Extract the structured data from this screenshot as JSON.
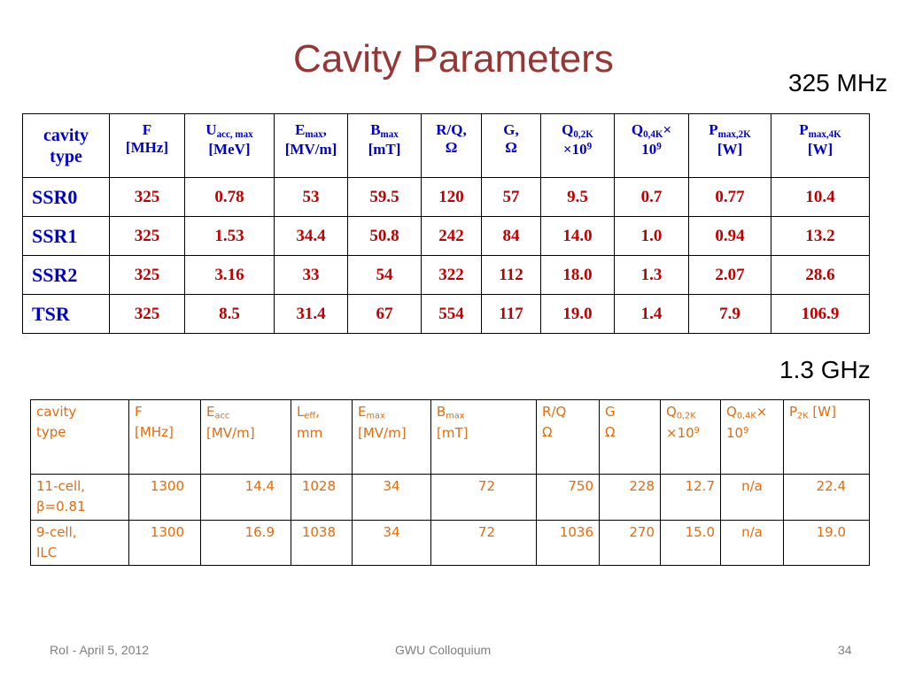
{
  "title": "Cavity Parameters",
  "table1": {
    "freq_label": "325 MHz",
    "header": {
      "cavity_type": [
        "cavity",
        "type"
      ],
      "f": {
        "main": "F",
        "unit": "[MHz]"
      },
      "uacc": {
        "main": "U",
        "sub": "acc, max",
        "unit": "[MeV]"
      },
      "emax": {
        "main": "E",
        "sub": "max",
        "tail": ",",
        "unit": "[MV/m]"
      },
      "bmax": {
        "main": "B",
        "sub": "max",
        "unit": "[mT]"
      },
      "rq": {
        "main": "R/Q,",
        "unit": "Ω"
      },
      "g": {
        "main": "G,",
        "unit": "Ω"
      },
      "q2k": {
        "main": "Q",
        "sub": "0,2K",
        "unit": "×10",
        "sup": "9"
      },
      "q4k": {
        "main": "Q",
        "sub": "0,4K",
        "tail": "×",
        "unit": "10",
        "sup": "9"
      },
      "pmax2k": {
        "main": "P",
        "sub": "max,2K",
        "unit": "[W]"
      },
      "pmax4k": {
        "main": "P",
        "sub": "max,4K",
        "unit": "[W]"
      }
    },
    "rows": [
      {
        "name": "SSR0",
        "f": "325",
        "uacc": "0.78",
        "emax": "53",
        "bmax": "59.5",
        "rq": "120",
        "g": "57",
        "q2k": "9.5",
        "q4k": "0.7",
        "p2k": "0.77",
        "p4k": "10.4"
      },
      {
        "name": "SSR1",
        "f": "325",
        "uacc": "1.53",
        "emax": "34.4",
        "bmax": "50.8",
        "rq": "242",
        "g": "84",
        "q2k": "14.0",
        "q4k": "1.0",
        "p2k": "0.94",
        "p4k": "13.2"
      },
      {
        "name": "SSR2",
        "f": "325",
        "uacc": "3.16",
        "emax": "33",
        "bmax": "54",
        "rq": "322",
        "g": "112",
        "q2k": "18.0",
        "q4k": "1.3",
        "p2k": "2.07",
        "p4k": "28.6"
      },
      {
        "name": "TSR",
        "f": "325",
        "uacc": "8.5",
        "emax": "31.4",
        "bmax": "67",
        "rq": "554",
        "g": "117",
        "q2k": "19.0",
        "q4k": "1.4",
        "p2k": "7.9",
        "p4k": "106.9"
      }
    ]
  },
  "table2": {
    "freq_label": "1.3 GHz",
    "header": {
      "cavity_type": [
        "cavity",
        "type"
      ],
      "f": {
        "main": "F",
        "unit": "[MHz]"
      },
      "eacc": {
        "main": "E",
        "sub": "acc",
        "unit": "[MV/m]"
      },
      "leff": {
        "main": "L",
        "sub": "eff",
        "tail": ",",
        "unit": "mm"
      },
      "emax": {
        "main": "E",
        "sub": "max",
        "unit": "[MV/m]"
      },
      "bmax": {
        "main": "B",
        "sub": "max",
        "unit": "[mT]"
      },
      "rq": {
        "main": "R/Q",
        "unit": "Ω"
      },
      "g": {
        "main": "G",
        "unit": "Ω"
      },
      "q2k": {
        "main": "Q",
        "sub": "0,2K",
        "unit": "×10",
        "sup": "9"
      },
      "q4k": {
        "main": "Q",
        "sub": "0,4K",
        "tail": "×",
        "unit": "10",
        "sup": "9"
      },
      "p2k": {
        "main": "P",
        "sub": "2K",
        "tail": " [W]"
      }
    },
    "rows": [
      {
        "name": [
          "11-cell,",
          "β=0.81"
        ],
        "f": "1300",
        "eacc": "14.4",
        "leff": "1028",
        "emax": "34",
        "bmax": "72",
        "rq": "750",
        "g": "228",
        "q2k": "12.7",
        "q4k": "n/a",
        "p2k": "22.4"
      },
      {
        "name": [
          "9-cell,",
          "ILC"
        ],
        "f": "1300",
        "eacc": "16.9",
        "leff": "1038",
        "emax": "34",
        "bmax": "72",
        "rq": "1036",
        "g": "270",
        "q2k": "15.0",
        "q4k": "n/a",
        "p2k": "19.0"
      }
    ]
  },
  "footer": {
    "left": "RoI - April 5, 2012",
    "center": "GWU Colloquium",
    "page": "34"
  }
}
